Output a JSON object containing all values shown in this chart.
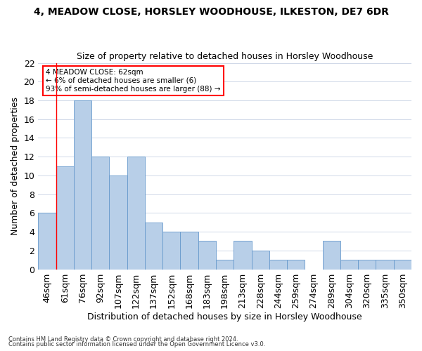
{
  "title": "4, MEADOW CLOSE, HORSLEY WOODHOUSE, ILKESTON, DE7 6DR",
  "subtitle": "Size of property relative to detached houses in Horsley Woodhouse",
  "xlabel": "Distribution of detached houses by size in Horsley Woodhouse",
  "ylabel": "Number of detached properties",
  "bin_labels": [
    "46sqm",
    "61sqm",
    "76sqm",
    "92sqm",
    "107sqm",
    "122sqm",
    "137sqm",
    "152sqm",
    "168sqm",
    "183sqm",
    "198sqm",
    "213sqm",
    "228sqm",
    "244sqm",
    "259sqm",
    "274sqm",
    "289sqm",
    "304sqm",
    "320sqm",
    "335sqm",
    "350sqm"
  ],
  "bar_values": [
    6,
    11,
    18,
    12,
    10,
    12,
    5,
    4,
    4,
    3,
    1,
    3,
    2,
    1,
    1,
    0,
    3,
    1,
    1,
    1,
    1
  ],
  "bar_color": "#b8cfe8",
  "bar_edge_color": "#6699cc",
  "grid_color": "#d0d8e8",
  "annotation_text": "4 MEADOW CLOSE: 62sqm\n← 6% of detached houses are smaller (6)\n93% of semi-detached houses are larger (88) →",
  "annotation_box_color": "white",
  "annotation_box_edge_color": "red",
  "vline_color": "red",
  "vline_x_index": 1,
  "ylim": [
    0,
    22
  ],
  "yticks": [
    0,
    2,
    4,
    6,
    8,
    10,
    12,
    14,
    16,
    18,
    20,
    22
  ],
  "footer1": "Contains HM Land Registry data © Crown copyright and database right 2024.",
  "footer2": "Contains public sector information licensed under the Open Government Licence v3.0.",
  "background_color": "#ffffff",
  "title_fontsize": 10,
  "subtitle_fontsize": 9
}
